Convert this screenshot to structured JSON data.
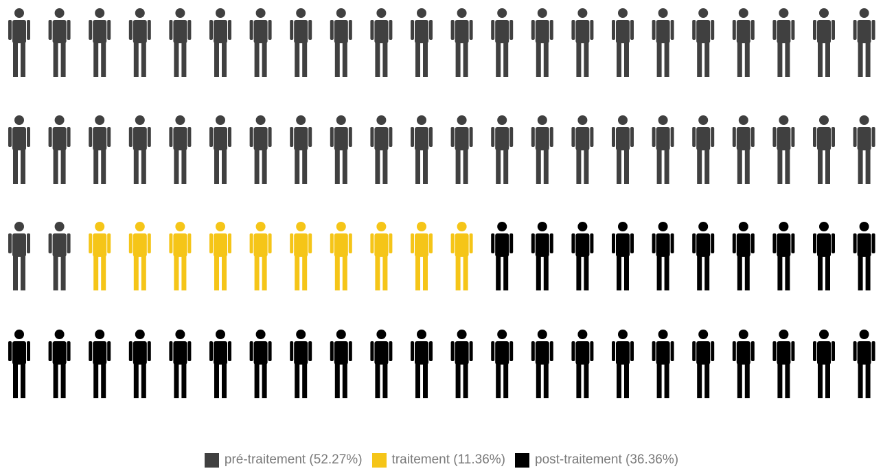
{
  "chart_data": {
    "type": "pictogram",
    "icon": "person-icon",
    "total_icons": 88,
    "rows": 4,
    "columns": 22,
    "series": [
      {
        "name": "pré-traitement",
        "percent": 52.27,
        "count": 46,
        "color": "#404040"
      },
      {
        "name": "traitement",
        "percent": 11.36,
        "count": 10,
        "color": "#f5c518"
      },
      {
        "name": "post-traitement",
        "percent": 36.36,
        "count": 32,
        "color": "#000000"
      }
    ],
    "legend": {
      "position": "bottom-center",
      "items": [
        {
          "label": "pré-traitement (52.27%)",
          "color": "#404040"
        },
        {
          "label": "traitement (11.36%)",
          "color": "#f5c518"
        },
        {
          "label": "post-traitement (36.36%)",
          "color": "#000000"
        }
      ]
    }
  }
}
